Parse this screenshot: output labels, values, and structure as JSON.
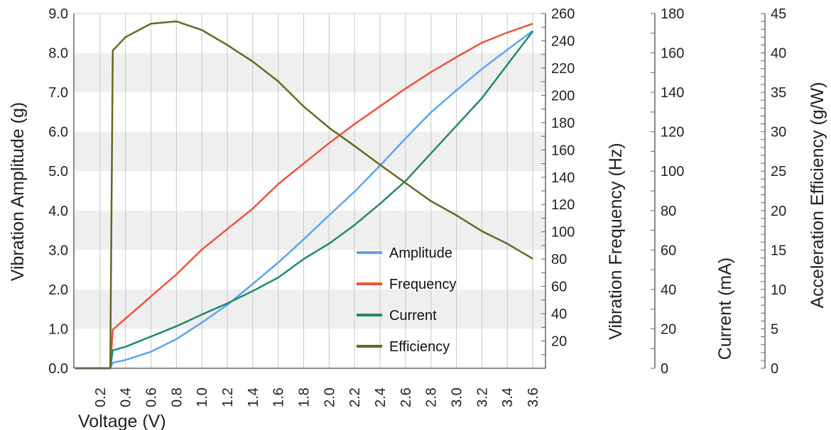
{
  "chart_data": {
    "type": "line",
    "title": "",
    "xlabel": "Voltage (V)",
    "xlim": [
      0,
      3.7
    ],
    "xticks": [
      "0.2",
      "0.4",
      "0.6",
      "0.8",
      "1.0",
      "1.2",
      "1.4",
      "1.6",
      "1.8",
      "2.0",
      "2.2",
      "2.4",
      "2.6",
      "2.8",
      "3.0",
      "3.2",
      "3.4",
      "3.6"
    ],
    "grid": {
      "vertical": true,
      "horizontal_bands": true
    },
    "legend_position": "center-right",
    "axes": [
      {
        "id": "amp",
        "label": "Vibration Amplitude (g)",
        "side": "left",
        "ylim": [
          0,
          9
        ],
        "ticks": [
          "0.0",
          "1.0",
          "2.0",
          "3.0",
          "4.0",
          "5.0",
          "6.0",
          "7.0",
          "8.0",
          "9.0"
        ]
      },
      {
        "id": "freq",
        "label": "Vibration Frequency (Hz)",
        "side": "right",
        "ylim": [
          0,
          260
        ],
        "ticks": [
          "20",
          "40",
          "60",
          "80",
          "100",
          "120",
          "140",
          "160",
          "180",
          "200",
          "220",
          "240",
          "260"
        ]
      },
      {
        "id": "cur",
        "label": "Current (mA)",
        "side": "right",
        "ylim": [
          0,
          180
        ],
        "ticks": [
          "0",
          "20",
          "40",
          "60",
          "80",
          "100",
          "120",
          "140",
          "160",
          "180"
        ]
      },
      {
        "id": "eff",
        "label": "Acceleration Efficiency (g/W)",
        "side": "right",
        "ylim": [
          0,
          45
        ],
        "ticks": [
          "0",
          "5",
          "10",
          "15",
          "20",
          "25",
          "30",
          "35",
          "40",
          "45"
        ]
      }
    ],
    "x": [
      0,
      0.28,
      0.3,
      0.4,
      0.6,
      0.8,
      1.0,
      1.2,
      1.4,
      1.6,
      1.8,
      2.0,
      2.2,
      2.4,
      2.6,
      2.8,
      3.0,
      3.2,
      3.4,
      3.6
    ],
    "series": [
      {
        "name": "Amplitude",
        "axis": "amp",
        "color": "#5aa5f5",
        "values": [
          0,
          0,
          0.14,
          0.21,
          0.42,
          0.74,
          1.16,
          1.61,
          2.14,
          2.68,
          3.27,
          3.88,
          4.48,
          5.14,
          5.83,
          6.49,
          7.05,
          7.59,
          8.08,
          8.56
        ]
      },
      {
        "name": "Frequency",
        "axis": "freq",
        "color": "#f0533a",
        "values": [
          0,
          0,
          28.3,
          36.4,
          52.6,
          68.8,
          87,
          102,
          117,
          135,
          150,
          165,
          179,
          192,
          205,
          217,
          228,
          238.5,
          246,
          252.5
        ]
      },
      {
        "name": "Current",
        "axis": "cur",
        "color": "#1f8a6a",
        "values": [
          0,
          0,
          9.1,
          10.9,
          16.1,
          21.3,
          27.3,
          32.9,
          39.2,
          46,
          55.4,
          63.3,
          72.7,
          83.5,
          95,
          109,
          123,
          137,
          154,
          171
        ]
      },
      {
        "name": "Efficiency",
        "axis": "eff",
        "color": "#6b6523",
        "values": [
          0,
          0,
          40.3,
          42.0,
          43.7,
          44.0,
          42.9,
          41.0,
          38.9,
          36.4,
          33.2,
          30.5,
          28.2,
          25.8,
          23.5,
          21.2,
          19.4,
          17.4,
          15.8,
          13.9
        ]
      }
    ]
  }
}
